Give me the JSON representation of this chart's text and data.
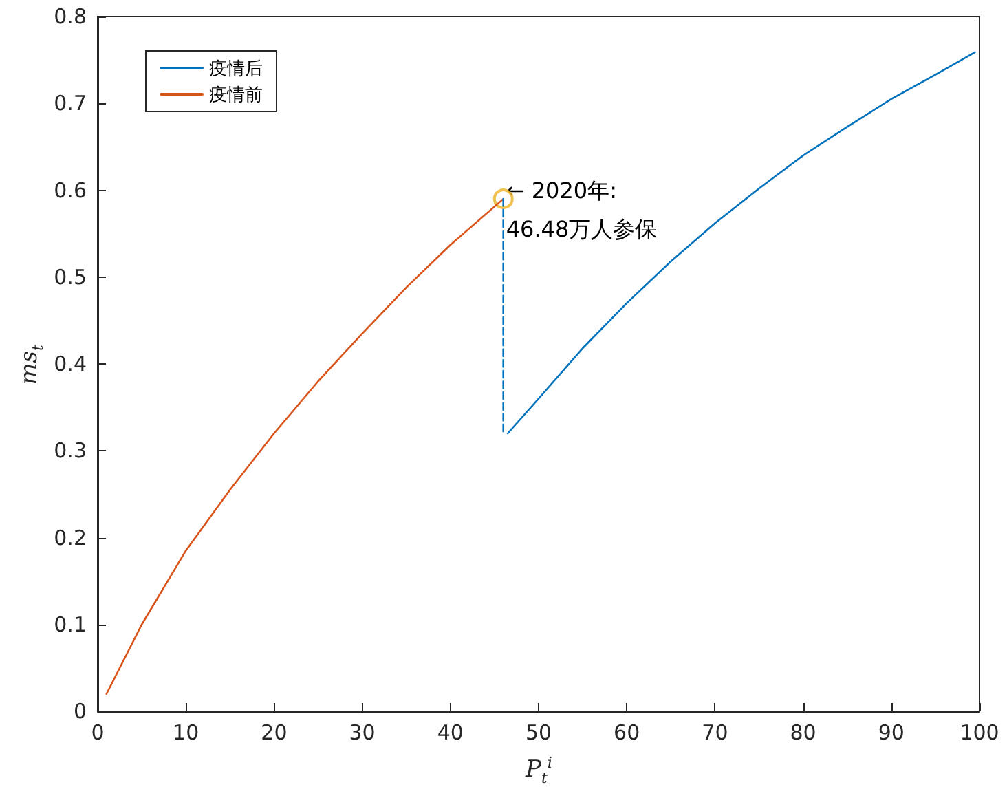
{
  "chart_data": {
    "type": "line",
    "xlabel": "P$_{t}$$^{i}$",
    "ylabel": "ms$_{t}$",
    "xlim": [
      0,
      100
    ],
    "xticks": [
      0,
      10,
      20,
      30,
      40,
      50,
      60,
      70,
      80,
      90,
      100
    ],
    "ylim": [
      0,
      0.8
    ],
    "yticks": [
      0,
      0.1,
      0.2,
      0.3,
      0.4,
      0.5,
      0.6,
      0.7,
      0.8
    ],
    "grid": false,
    "legend": "top left",
    "marker": "none",
    "line_style": "solid",
    "series": [
      {
        "name": "疫情后",
        "color": "#0072bd",
        "x": [
          46.5,
          50,
          55,
          60,
          65,
          70,
          75,
          80,
          85,
          90,
          95,
          99.5
        ],
        "values": [
          0.32,
          0.36,
          0.418,
          0.47,
          0.518,
          0.562,
          0.602,
          0.64,
          0.673,
          0.705,
          0.733,
          0.759
        ]
      },
      {
        "name": "疫情前",
        "color": "#d95319",
        "x": [
          1,
          5,
          10,
          15,
          20,
          25,
          30,
          35,
          40,
          46
        ],
        "values": [
          0.02,
          0.1,
          0.185,
          0.255,
          0.32,
          0.38,
          0.435,
          0.488,
          0.537,
          0.59
        ]
      },
      {
        "color": "#0072bd",
        "x": [
          46,
          46
        ],
        "values": [
          0.59,
          0.32
        ],
        "line_style": "dashed"
      },
      {
        "type": "scatter",
        "color": "#edb120",
        "x": [
          46
        ],
        "values": [
          0.59
        ],
        "marker": "circle"
      }
    ],
    "annotations": [
      {
        "text": "← 2020年:\n46.48万人参保",
        "x": 46,
        "y": 0.59
      }
    ]
  }
}
